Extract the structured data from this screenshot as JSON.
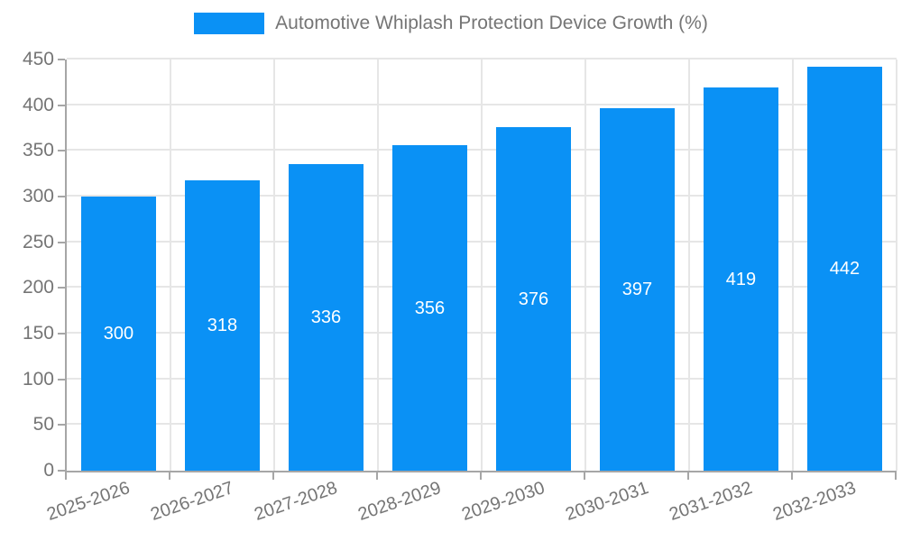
{
  "legend": {
    "label": "Automotive Whiplash Protection Device Growth (%)",
    "swatch_color": "#0a91f5"
  },
  "chart_data": {
    "type": "bar",
    "title": "",
    "series_name": "Automotive Whiplash Protection Device Growth (%)",
    "categories": [
      "2025-2026",
      "2026-2027",
      "2027-2028",
      "2028-2029",
      "2029-2030",
      "2030-2031",
      "2031-2032",
      "2032-2033"
    ],
    "values": [
      300,
      318,
      336,
      356,
      376,
      397,
      419,
      442
    ],
    "value_labels": [
      "300",
      "318",
      "336",
      "356",
      "376",
      "397",
      "419",
      "442"
    ],
    "xlabel": "",
    "ylabel": "",
    "ylim": [
      0,
      450
    ],
    "yticks": [
      0,
      50,
      100,
      150,
      200,
      250,
      300,
      350,
      400,
      450
    ],
    "ytick_labels": [
      "0",
      "50",
      "100",
      "150",
      "200",
      "250",
      "300",
      "350",
      "400",
      "450"
    ],
    "grid": true,
    "legend_position": "top",
    "bar_color": "#0a91f5",
    "bar_label_color": "#ffffff",
    "grid_color": "#e6e6e6",
    "axis_color": "#a6a6a6",
    "tick_text_color": "#757575"
  }
}
